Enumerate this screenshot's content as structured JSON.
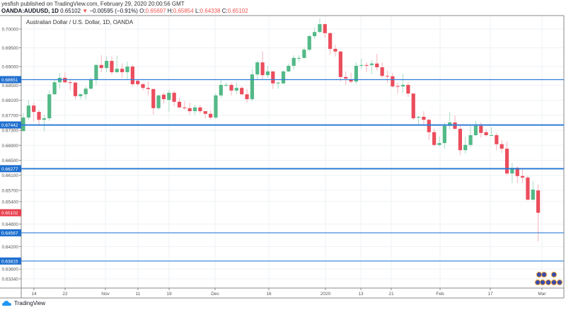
{
  "header": {
    "published": "yesfish published on TradingView.com, February 29, 2020 20:00:56 GMT",
    "symbol": "OANDA:AUDUSD, 1D",
    "last": "0.65102",
    "change": "−0.00595 (−0.91%)",
    "o_label": "O:",
    "o": "0.65697",
    "h_label": "H:",
    "h": "0.65854",
    "l_label": "L:",
    "l": "0.64338",
    "c_label": "C:",
    "c": "0.65102"
  },
  "branding": {
    "logo_text": "TradingView"
  },
  "colors": {
    "up": "#26a69a",
    "up_fill": "#53b987",
    "down": "#eb4d5c",
    "level_line": "#2f7ed8",
    "label_blue": "#1e6fcf",
    "label_red": "#e8404f",
    "grid": "#eef1f4"
  },
  "chart_data": {
    "type": "candlestick",
    "title": "Australian Dollar / U.S. Dollar, 1D, OANDA",
    "ylim": [
      0.6318,
      0.704
    ],
    "grid": true,
    "x_ticks": [
      "14",
      "22",
      "Nov",
      "11",
      "19",
      "Dec",
      "16",
      "2020",
      "13",
      "21",
      "Feb",
      "17",
      "Mar"
    ],
    "y_ticks": [
      "0.70000",
      "0.69500",
      "0.69000",
      "0.68500",
      "0.68100",
      "0.67700",
      "0.67300",
      "0.66900",
      "0.66500",
      "0.66100",
      "0.65700",
      "0.65400",
      "0.64800",
      "0.64200",
      "0.63600",
      "0.63340"
    ],
    "horizontal_levels": [
      {
        "value": 0.68651,
        "label": "0.68651",
        "weight": "thin"
      },
      {
        "value": 0.67442,
        "label": "0.67442",
        "weight": "thick"
      },
      {
        "value": 0.66277,
        "label": "0.66277",
        "weight": "thick"
      },
      {
        "value": 0.64567,
        "label": "0.64567",
        "weight": "thin"
      },
      {
        "value": 0.63815,
        "label": "0.63815",
        "weight": "thin"
      }
    ],
    "last_price_label": "0.65102",
    "ohlc": [
      [
        0.6728,
        0.6775,
        0.6727,
        0.6764
      ],
      [
        0.6764,
        0.6811,
        0.6757,
        0.6796
      ],
      [
        0.6796,
        0.6804,
        0.6753,
        0.6779
      ],
      [
        0.6779,
        0.6785,
        0.6745,
        0.6758
      ],
      [
        0.6758,
        0.6772,
        0.6727,
        0.6762
      ],
      [
        0.6762,
        0.6836,
        0.6755,
        0.6826
      ],
      [
        0.6826,
        0.6864,
        0.6825,
        0.6858
      ],
      [
        0.6858,
        0.6883,
        0.6841,
        0.687
      ],
      [
        0.687,
        0.6885,
        0.6855,
        0.6858
      ],
      [
        0.6858,
        0.6864,
        0.6836,
        0.6857
      ],
      [
        0.6857,
        0.686,
        0.6813,
        0.6821
      ],
      [
        0.6821,
        0.6828,
        0.6813,
        0.6826
      ],
      [
        0.6826,
        0.6847,
        0.6813,
        0.6841
      ],
      [
        0.6841,
        0.687,
        0.6838,
        0.6866
      ],
      [
        0.6866,
        0.6908,
        0.6851,
        0.6904
      ],
      [
        0.6904,
        0.693,
        0.6885,
        0.6896
      ],
      [
        0.6896,
        0.6927,
        0.6885,
        0.6915
      ],
      [
        0.6915,
        0.6927,
        0.6879,
        0.6885
      ],
      [
        0.6885,
        0.6929,
        0.6883,
        0.6894
      ],
      [
        0.6894,
        0.6908,
        0.687,
        0.6885
      ],
      [
        0.6885,
        0.6913,
        0.6864,
        0.69
      ],
      [
        0.69,
        0.6904,
        0.6847,
        0.6853
      ],
      [
        0.6862,
        0.6866,
        0.6847,
        0.6853
      ],
      [
        0.6853,
        0.6857,
        0.6836,
        0.6843
      ],
      [
        0.6843,
        0.686,
        0.6823,
        0.684
      ],
      [
        0.684,
        0.6841,
        0.6772,
        0.6789
      ],
      [
        0.6789,
        0.6826,
        0.6785,
        0.6823
      ],
      [
        0.6825,
        0.683,
        0.6802,
        0.6813
      ],
      [
        0.6811,
        0.6838,
        0.6779,
        0.683
      ],
      [
        0.683,
        0.6836,
        0.6794,
        0.6806
      ],
      [
        0.6806,
        0.6817,
        0.6789,
        0.6791
      ],
      [
        0.6791,
        0.6808,
        0.6785,
        0.6789
      ],
      [
        0.6789,
        0.6804,
        0.6772,
        0.6781
      ],
      [
        0.6781,
        0.6798,
        0.6772,
        0.6791
      ],
      [
        0.6791,
        0.6796,
        0.6775,
        0.6781
      ],
      [
        0.6781,
        0.6781,
        0.6762,
        0.6774
      ],
      [
        0.6774,
        0.6783,
        0.676,
        0.6764
      ],
      [
        0.6764,
        0.6828,
        0.676,
        0.6823
      ],
      [
        0.6823,
        0.6864,
        0.6817,
        0.6851
      ],
      [
        0.685,
        0.6857,
        0.6845,
        0.6851
      ],
      [
        0.6851,
        0.6857,
        0.6823,
        0.6836
      ],
      [
        0.6836,
        0.6858,
        0.6826,
        0.6843
      ],
      [
        0.6843,
        0.6847,
        0.6823,
        0.6826
      ],
      [
        0.6826,
        0.684,
        0.6804,
        0.6813
      ],
      [
        0.6813,
        0.6892,
        0.6808,
        0.6879
      ],
      [
        0.6879,
        0.6915,
        0.6866,
        0.6911
      ],
      [
        0.6911,
        0.694,
        0.6866,
        0.6877
      ],
      [
        0.6877,
        0.6902,
        0.687,
        0.6887
      ],
      [
        0.6887,
        0.6887,
        0.684,
        0.6855
      ],
      [
        0.6855,
        0.686,
        0.6841,
        0.6857
      ],
      [
        0.6855,
        0.6889,
        0.6853,
        0.6887
      ],
      [
        0.6887,
        0.6908,
        0.6885,
        0.6902
      ],
      [
        0.6902,
        0.693,
        0.6892,
        0.6923
      ],
      [
        0.6922,
        0.693,
        0.6913,
        0.6923
      ],
      [
        0.6923,
        0.6951,
        0.6921,
        0.6945
      ],
      [
        0.6945,
        0.6985,
        0.694,
        0.6981
      ],
      [
        0.6981,
        0.7004,
        0.6974,
        0.6992
      ],
      [
        0.6992,
        0.7028,
        0.6989,
        0.7013
      ],
      [
        0.7013,
        0.7015,
        0.6977,
        0.6989
      ],
      [
        0.6989,
        0.6992,
        0.6932,
        0.6947
      ],
      [
        0.6947,
        0.6958,
        0.6927,
        0.694
      ],
      [
        0.694,
        0.6941,
        0.686,
        0.6872
      ],
      [
        0.6872,
        0.6887,
        0.6851,
        0.6868
      ],
      [
        0.6866,
        0.6883,
        0.6855,
        0.686
      ],
      [
        0.686,
        0.6911,
        0.6853,
        0.6902
      ],
      [
        0.6902,
        0.6921,
        0.6894,
        0.6904
      ],
      [
        0.6904,
        0.6911,
        0.6885,
        0.6902
      ],
      [
        0.6904,
        0.6917,
        0.6879,
        0.6908
      ],
      [
        0.6908,
        0.6934,
        0.6889,
        0.6898
      ],
      [
        0.6898,
        0.6911,
        0.687,
        0.6875
      ],
      [
        0.6875,
        0.6889,
        0.6857,
        0.6874
      ],
      [
        0.6874,
        0.6883,
        0.6843,
        0.6847
      ],
      [
        0.6848,
        0.6857,
        0.6828,
        0.6847
      ],
      [
        0.6847,
        0.6881,
        0.683,
        0.6851
      ],
      [
        0.6851,
        0.6858,
        0.6819,
        0.6828
      ],
      [
        0.6828,
        0.6828,
        0.6757,
        0.6762
      ],
      [
        0.6764,
        0.6768,
        0.6742,
        0.6766
      ],
      [
        0.6766,
        0.6781,
        0.6742,
        0.6758
      ],
      [
        0.6758,
        0.676,
        0.6704,
        0.6725
      ],
      [
        0.6725,
        0.6734,
        0.6687,
        0.6691
      ],
      [
        0.6691,
        0.6713,
        0.6687,
        0.6696
      ],
      [
        0.6696,
        0.6751,
        0.6681,
        0.6742
      ],
      [
        0.6742,
        0.6779,
        0.6732,
        0.6751
      ],
      [
        0.6751,
        0.677,
        0.6732,
        0.6734
      ],
      [
        0.6734,
        0.6742,
        0.6664,
        0.6677
      ],
      [
        0.6677,
        0.6713,
        0.6668,
        0.6691
      ],
      [
        0.6691,
        0.6742,
        0.6685,
        0.6717
      ],
      [
        0.6717,
        0.6755,
        0.6715,
        0.6742
      ],
      [
        0.6742,
        0.6751,
        0.6711,
        0.6723
      ],
      [
        0.6725,
        0.6734,
        0.6713,
        0.6717
      ],
      [
        0.6716,
        0.6738,
        0.6715,
        0.6717
      ],
      [
        0.6717,
        0.6723,
        0.6677,
        0.6693
      ],
      [
        0.6693,
        0.6704,
        0.667,
        0.6681
      ],
      [
        0.6681,
        0.67,
        0.6611,
        0.6615
      ],
      [
        0.6615,
        0.6643,
        0.6589,
        0.663
      ],
      [
        0.663,
        0.6634,
        0.6589,
        0.6608
      ],
      [
        0.6608,
        0.6626,
        0.6589,
        0.6604
      ],
      [
        0.6604,
        0.6609,
        0.6543,
        0.6545
      ],
      [
        0.6545,
        0.6594,
        0.6543,
        0.6572
      ],
      [
        0.65697,
        0.65854,
        0.64338,
        0.65102
      ]
    ]
  }
}
